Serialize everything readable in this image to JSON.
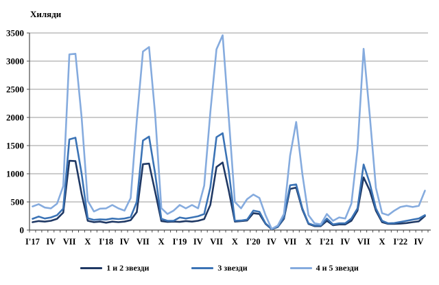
{
  "page": {
    "background": "#ffffff"
  },
  "chart_data": {
    "type": "line",
    "title": "Хиляди",
    "x_axis_note": "monthly data Jan 2017 - May 2022, labels every 3rd month",
    "x_tick_labels": [
      "I'17",
      "IV",
      "VII",
      "X",
      "I'18",
      "IV",
      "VII",
      "X",
      "I'19",
      "IV",
      "VII",
      "X",
      "I'20",
      "IV",
      "VII",
      "X",
      "I'21",
      "IV",
      "VII",
      "X",
      "I'22",
      "IV"
    ],
    "x_months_total": 65,
    "ylim": [
      0,
      3500
    ],
    "y_tick_step": 500,
    "y_tick_labels": [
      "0",
      "500",
      "1000",
      "1500",
      "2000",
      "2500",
      "3000",
      "3500"
    ],
    "grid": true,
    "legend_position": "bottom",
    "colors": {
      "gridline": "#ADADAD",
      "axis": "#4a4a4a",
      "text": "#000000"
    },
    "series": [
      {
        "name": "1 и 2 звезди",
        "color": "#1F3864",
        "values": [
          140,
          160,
          150,
          165,
          200,
          310,
          1230,
          1225,
          640,
          165,
          140,
          150,
          130,
          150,
          140,
          150,
          175,
          320,
          1170,
          1180,
          680,
          160,
          145,
          150,
          145,
          160,
          150,
          165,
          195,
          450,
          1120,
          1200,
          700,
          150,
          160,
          170,
          300,
          285,
          110,
          15,
          55,
          200,
          730,
          755,
          365,
          110,
          70,
          70,
          165,
          85,
          100,
          100,
          165,
          345,
          935,
          700,
          345,
          140,
          110,
          110,
          115,
          125,
          140,
          155,
          250
        ]
      },
      {
        "name": "3 звезди",
        "color": "#3B73B5",
        "values": [
          200,
          240,
          205,
          225,
          265,
          380,
          1610,
          1640,
          1000,
          210,
          180,
          190,
          185,
          205,
          195,
          205,
          230,
          500,
          1590,
          1660,
          1000,
          200,
          165,
          165,
          225,
          205,
          225,
          245,
          285,
          760,
          1650,
          1720,
          1050,
          165,
          170,
          185,
          345,
          325,
          120,
          20,
          60,
          225,
          795,
          810,
          385,
          120,
          80,
          80,
          205,
          100,
          120,
          120,
          205,
          385,
          1165,
          830,
          385,
          165,
          120,
          125,
          145,
          165,
          185,
          205,
          265
        ]
      },
      {
        "name": "4 и 5 звезди",
        "color": "#85ABDE",
        "values": [
          420,
          460,
          400,
          385,
          470,
          780,
          3120,
          3130,
          2000,
          520,
          330,
          380,
          385,
          445,
          385,
          345,
          570,
          1950,
          3170,
          3250,
          2050,
          390,
          285,
          345,
          445,
          385,
          445,
          385,
          790,
          2100,
          3210,
          3460,
          2000,
          500,
          385,
          550,
          630,
          570,
          265,
          20,
          80,
          285,
          1320,
          1920,
          995,
          265,
          120,
          100,
          285,
          165,
          225,
          205,
          470,
          1440,
          3220,
          2030,
          750,
          300,
          265,
          345,
          410,
          430,
          410,
          430,
          700
        ]
      }
    ]
  }
}
